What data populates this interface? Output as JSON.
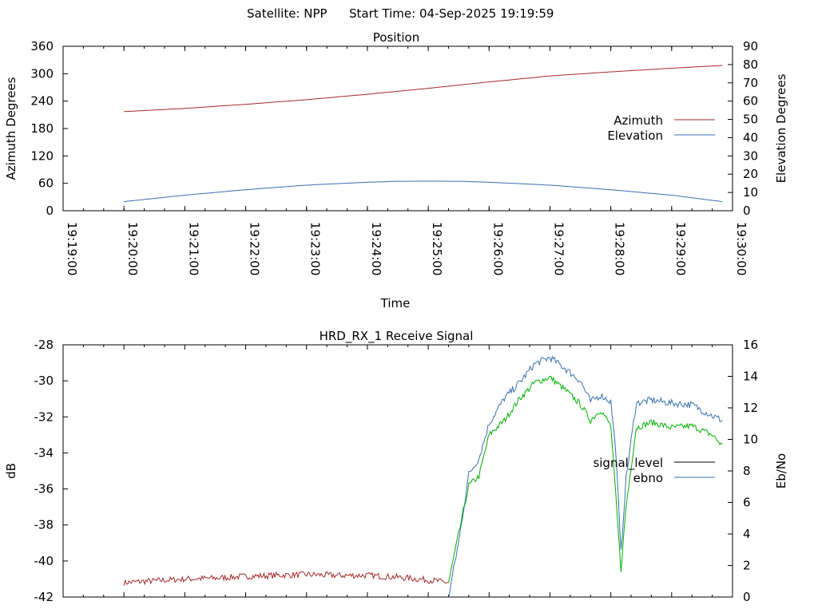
{
  "header": {
    "satellite_label": "Satellite: NPP",
    "start_time_label": "Start Time: 04-Sep-2025 19:19:59"
  },
  "chart_data": [
    {
      "type": "line",
      "title": "Position",
      "xlabel": "Time",
      "ylabel_left": "Azimuth Degrees",
      "ylabel_right": "Elevation Degrees",
      "x_ticks": [
        "19:19:00",
        "19:20:00",
        "19:21:00",
        "19:22:00",
        "19:23:00",
        "19:24:00",
        "19:25:00",
        "19:26:00",
        "19:27:00",
        "19:28:00",
        "19:29:00",
        "19:30:00"
      ],
      "xlim": [
        "19:19:00",
        "19:30:00"
      ],
      "ylim_left": [
        0,
        360
      ],
      "ylim_right": [
        0,
        90
      ],
      "y_ticks_left": [
        "0",
        "60",
        "120",
        "180",
        "240",
        "300",
        "360"
      ],
      "y_ticks_right": [
        "0",
        "10",
        "20",
        "30",
        "40",
        "50",
        "60",
        "70",
        "80",
        "90"
      ],
      "legend": "right",
      "colors": {
        "azimuth": "#a52a2a",
        "elevation": "#3a6fb0"
      },
      "series": [
        {
          "name": "Azimuth",
          "axis": "left",
          "x": [
            "19:20:00",
            "19:21:00",
            "19:22:00",
            "19:23:00",
            "19:24:00",
            "19:25:00",
            "19:26:00",
            "19:27:00",
            "19:28:00",
            "19:29:00",
            "19:29:50"
          ],
          "values": [
            217,
            224,
            233,
            243,
            255,
            268,
            282,
            295,
            304,
            312,
            318
          ]
        },
        {
          "name": "Elevation",
          "axis": "right",
          "x": [
            "19:20:00",
            "19:21:00",
            "19:22:00",
            "19:23:00",
            "19:24:00",
            "19:24:30",
            "19:25:00",
            "19:25:30",
            "19:26:00",
            "19:27:00",
            "19:28:00",
            "19:29:00",
            "19:29:50"
          ],
          "values": [
            5,
            8.5,
            11.5,
            14,
            15.6,
            16.1,
            16.2,
            16.1,
            15.6,
            14,
            11.5,
            8.5,
            5
          ]
        }
      ]
    },
    {
      "type": "line",
      "title": "HRD_RX_1 Receive Signal",
      "xlabel": "",
      "ylabel_left": "dB",
      "ylabel_right": "Eb/No",
      "xlim": [
        "19:19:00",
        "19:30:00"
      ],
      "ylim_left": [
        -42,
        -28
      ],
      "ylim_right": [
        0,
        16
      ],
      "y_ticks_left": [
        "-42",
        "-40",
        "-38",
        "-36",
        "-34",
        "-32",
        "-30",
        "-28"
      ],
      "y_ticks_right": [
        "0",
        "2",
        "4",
        "6",
        "8",
        "10",
        "12",
        "14",
        "16"
      ],
      "legend": "right",
      "colors": {
        "signal_level": "#a52a2a",
        "signal_level_late": "#00b000",
        "ebno": "#3a6fb0",
        "legend_signal_level": "#000000"
      },
      "series": [
        {
          "name": "signal_level",
          "axis": "left",
          "x": [
            "19:20:00",
            "19:20:30",
            "19:21:00",
            "19:21:30",
            "19:22:00",
            "19:22:30",
            "19:23:00",
            "19:23:30",
            "19:24:00",
            "19:24:30",
            "19:25:00",
            "19:25:20",
            "19:25:30",
            "19:25:40",
            "19:25:50",
            "19:26:00",
            "19:26:15",
            "19:26:30",
            "19:26:45",
            "19:27:00",
            "19:27:15",
            "19:27:30",
            "19:27:40",
            "19:27:50",
            "19:28:00",
            "19:28:05",
            "19:28:10",
            "19:28:15",
            "19:28:25",
            "19:28:40",
            "19:29:00",
            "19:29:20",
            "19:29:40",
            "19:29:50"
          ],
          "values": [
            -41.2,
            -41.1,
            -41.0,
            -40.95,
            -40.85,
            -40.8,
            -40.75,
            -40.8,
            -40.8,
            -40.9,
            -41.05,
            -41.2,
            -38.5,
            -35.8,
            -35.3,
            -33.0,
            -32.2,
            -31.0,
            -30.1,
            -29.8,
            -30.5,
            -31.3,
            -32.2,
            -31.6,
            -32.5,
            -36.5,
            -40.5,
            -37.0,
            -32.6,
            -32.3,
            -32.6,
            -32.5,
            -33.0,
            -33.6
          ]
        },
        {
          "name": "ebno",
          "axis": "right",
          "x": [
            "19:25:20",
            "19:25:30",
            "19:25:40",
            "19:25:50",
            "19:26:00",
            "19:26:15",
            "19:26:30",
            "19:26:45",
            "19:27:00",
            "19:27:15",
            "19:27:30",
            "19:27:40",
            "19:27:50",
            "19:28:00",
            "19:28:05",
            "19:28:10",
            "19:28:15",
            "19:28:25",
            "19:28:40",
            "19:29:00",
            "19:29:20",
            "19:29:40",
            "19:29:50"
          ],
          "values": [
            0,
            3.5,
            7.8,
            8.8,
            11.0,
            12.6,
            13.6,
            14.8,
            15.2,
            14.5,
            13.7,
            12.4,
            12.8,
            12.4,
            9.2,
            2.8,
            7.5,
            12.3,
            12.5,
            12.3,
            12.2,
            11.5,
            11.2
          ]
        }
      ]
    }
  ]
}
